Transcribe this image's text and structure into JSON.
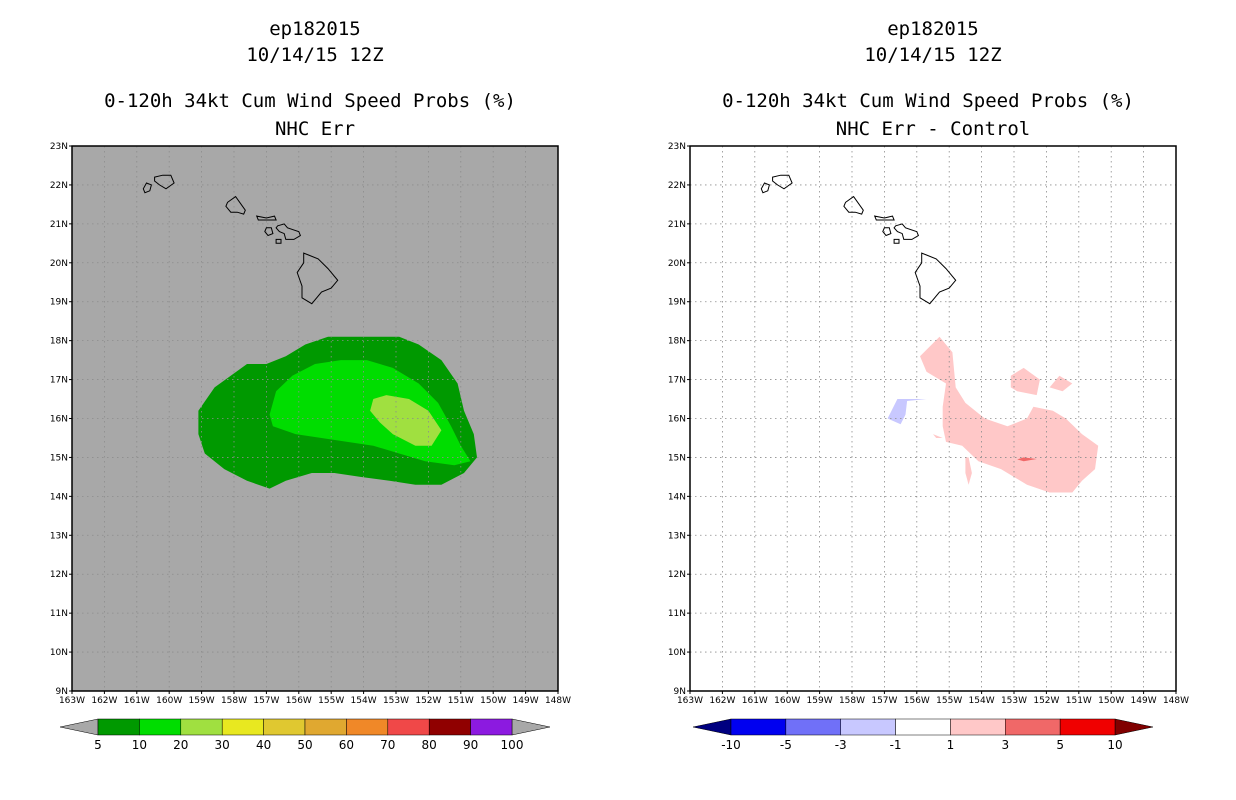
{
  "chart_data": [
    {
      "type": "heatmap",
      "storm_id": "ep182015",
      "date_time": "10/14/15 12Z",
      "title": "0-120h 34kt Cum Wind Speed Probs (%)",
      "subtitle": "NHC Err",
      "x_ticks": [
        "163W",
        "162W",
        "161W",
        "160W",
        "159W",
        "158W",
        "157W",
        "156W",
        "155W",
        "154W",
        "153W",
        "152W",
        "151W",
        "150W",
        "149W",
        "148W"
      ],
      "y_ticks": [
        "9N",
        "10N",
        "11N",
        "12N",
        "13N",
        "14N",
        "15N",
        "16N",
        "17N",
        "18N",
        "19N",
        "20N",
        "21N",
        "22N",
        "23N"
      ],
      "xlim": [
        -163,
        -148
      ],
      "ylim": [
        9,
        23
      ],
      "grid": true,
      "background_color": "#a8a8a8",
      "contours": [
        {
          "level": 5,
          "color": "#009900",
          "points": [
            [
              -159.1,
              16.2
            ],
            [
              -158.6,
              16.8
            ],
            [
              -157.6,
              17.4
            ],
            [
              -157.0,
              17.4
            ],
            [
              -156.4,
              17.6
            ],
            [
              -155.8,
              17.9
            ],
            [
              -155.1,
              18.1
            ],
            [
              -154.0,
              18.1
            ],
            [
              -152.9,
              18.1
            ],
            [
              -152.3,
              17.9
            ],
            [
              -151.6,
              17.5
            ],
            [
              -151.1,
              16.9
            ],
            [
              -150.9,
              16.2
            ],
            [
              -150.6,
              15.6
            ],
            [
              -150.5,
              15.0
            ],
            [
              -150.9,
              14.6
            ],
            [
              -151.6,
              14.3
            ],
            [
              -152.4,
              14.3
            ],
            [
              -153.2,
              14.4
            ],
            [
              -154.1,
              14.5
            ],
            [
              -154.9,
              14.6
            ],
            [
              -155.6,
              14.6
            ],
            [
              -156.4,
              14.4
            ],
            [
              -156.9,
              14.2
            ],
            [
              -157.6,
              14.4
            ],
            [
              -158.3,
              14.7
            ],
            [
              -158.9,
              15.1
            ],
            [
              -159.1,
              15.6
            ]
          ]
        },
        {
          "level": 10,
          "color": "#00dd00",
          "points": [
            [
              -156.9,
              16.1
            ],
            [
              -156.7,
              16.7
            ],
            [
              -156.2,
              17.1
            ],
            [
              -155.5,
              17.4
            ],
            [
              -154.7,
              17.5
            ],
            [
              -153.9,
              17.5
            ],
            [
              -153.1,
              17.3
            ],
            [
              -152.3,
              16.9
            ],
            [
              -151.7,
              16.4
            ],
            [
              -151.3,
              15.8
            ],
            [
              -151.0,
              15.3
            ],
            [
              -150.7,
              14.9
            ],
            [
              -151.2,
              14.8
            ],
            [
              -152.1,
              14.9
            ],
            [
              -152.9,
              15.1
            ],
            [
              -153.7,
              15.3
            ],
            [
              -154.5,
              15.4
            ],
            [
              -155.3,
              15.5
            ],
            [
              -156.1,
              15.6
            ],
            [
              -156.8,
              15.8
            ]
          ]
        },
        {
          "level": 20,
          "color": "#a0e040",
          "points": [
            [
              -153.7,
              16.5
            ],
            [
              -153.3,
              16.6
            ],
            [
              -152.6,
              16.5
            ],
            [
              -152.0,
              16.2
            ],
            [
              -151.6,
              15.7
            ],
            [
              -151.9,
              15.3
            ],
            [
              -152.4,
              15.3
            ],
            [
              -153.1,
              15.6
            ],
            [
              -153.5,
              15.9
            ],
            [
              -153.8,
              16.2
            ]
          ]
        }
      ],
      "colorbar": {
        "labels": [
          "5",
          "10",
          "20",
          "30",
          "40",
          "50",
          "60",
          "70",
          "80",
          "90",
          "100"
        ],
        "colors": [
          "#009900",
          "#00dd00",
          "#a0e040",
          "#e8e820",
          "#e0c830",
          "#e0a830",
          "#f08828",
          "#f04848",
          "#900000",
          "#8c1ae0"
        ],
        "end_colors": [
          "#a8a8a8",
          "#a8a8a8"
        ]
      }
    },
    {
      "type": "heatmap",
      "storm_id": "ep182015",
      "date_time": "10/14/15 12Z",
      "title": "0-120h 34kt Cum Wind Speed Probs (%)",
      "subtitle": "NHC Err - Control",
      "x_ticks": [
        "163W",
        "162W",
        "161W",
        "160W",
        "159W",
        "158W",
        "157W",
        "156W",
        "155W",
        "154W",
        "153W",
        "152W",
        "151W",
        "150W",
        "149W",
        "148W"
      ],
      "y_ticks": [
        "9N",
        "10N",
        "11N",
        "12N",
        "13N",
        "14N",
        "15N",
        "16N",
        "17N",
        "18N",
        "19N",
        "20N",
        "21N",
        "22N",
        "23N"
      ],
      "xlim": [
        -163,
        -148
      ],
      "ylim": [
        9,
        23
      ],
      "grid": true,
      "background_color": "#ffffff",
      "contours": [
        {
          "level": 1,
          "color": "#ffc8c8",
          "points": [
            [
              -155.9,
              17.6
            ],
            [
              -155.3,
              18.1
            ],
            [
              -154.9,
              17.7
            ],
            [
              -154.8,
              16.8
            ],
            [
              -154.5,
              16.4
            ],
            [
              -153.9,
              16.0
            ],
            [
              -153.2,
              15.8
            ],
            [
              -152.6,
              16.0
            ],
            [
              -152.4,
              16.3
            ],
            [
              -151.8,
              16.2
            ],
            [
              -151.4,
              16.0
            ],
            [
              -150.9,
              15.6
            ],
            [
              -150.4,
              15.3
            ],
            [
              -150.5,
              14.7
            ],
            [
              -150.9,
              14.4
            ],
            [
              -151.2,
              14.1
            ],
            [
              -151.9,
              14.1
            ],
            [
              -152.6,
              14.3
            ],
            [
              -153.4,
              14.7
            ],
            [
              -154.1,
              14.9
            ],
            [
              -154.6,
              15.3
            ],
            [
              -155.1,
              15.4
            ],
            [
              -155.2,
              15.8
            ],
            [
              -155.2,
              16.3
            ],
            [
              -155.1,
              16.9
            ],
            [
              -155.7,
              17.2
            ]
          ]
        },
        {
          "level": 1,
          "color": "#ffc8c8",
          "points": [
            [
              -153.1,
              17.1
            ],
            [
              -152.7,
              17.3
            ],
            [
              -152.2,
              17.0
            ],
            [
              -152.3,
              16.6
            ],
            [
              -152.9,
              16.7
            ],
            [
              -153.1,
              16.8
            ]
          ]
        },
        {
          "level": 1,
          "color": "#ffc8c8",
          "points": [
            [
              -151.9,
              16.8
            ],
            [
              -151.6,
              17.1
            ],
            [
              -151.2,
              16.9
            ],
            [
              -151.5,
              16.7
            ]
          ]
        },
        {
          "level": 1,
          "color": "#ffc8c8",
          "points": [
            [
              -154.5,
              15.0
            ],
            [
              -154.4,
              15.0
            ],
            [
              -154.3,
              14.6
            ],
            [
              -154.4,
              14.3
            ],
            [
              -154.5,
              14.6
            ]
          ]
        },
        {
          "level": 1,
          "color": "#ffc8c8",
          "points": [
            [
              -155.5,
              15.6
            ],
            [
              -155.2,
              15.5
            ],
            [
              -155.4,
              15.5
            ]
          ]
        },
        {
          "level": 3,
          "color": "#f06868",
          "points": [
            [
              -152.7,
              15.0
            ],
            [
              -152.3,
              14.96
            ],
            [
              -152.7,
              14.9
            ],
            [
              -152.9,
              14.95
            ]
          ]
        },
        {
          "level": -1,
          "color": "#c8c8ff",
          "points": [
            [
              -156.5,
              15.85
            ],
            [
              -156.9,
              16.0
            ],
            [
              -156.6,
              16.5
            ],
            [
              -156.1,
              16.5
            ],
            [
              -155.7,
              16.5
            ],
            [
              -156.3,
              16.45
            ],
            [
              -156.35,
              16.1
            ]
          ]
        }
      ],
      "colorbar": {
        "labels": [
          "-10",
          "-5",
          "-3",
          "-1",
          "1",
          "3",
          "5",
          "10"
        ],
        "colors": [
          "#0000f0",
          "#7070f8",
          "#c8c8ff",
          "#ffffff",
          "#ffc8c8",
          "#f06868",
          "#f00000"
        ],
        "end_colors": [
          "#000080",
          "#800000"
        ]
      }
    }
  ],
  "islands": {
    "kauai": [
      [
        -160.45,
        22.2
      ],
      [
        -160.2,
        22.25
      ],
      [
        -159.95,
        22.25
      ],
      [
        -159.85,
        22.05
      ],
      [
        -160.1,
        21.9
      ],
      [
        -160.3,
        22.0
      ],
      [
        -160.45,
        22.1
      ]
    ],
    "niihau": [
      [
        -160.7,
        22.05
      ],
      [
        -160.55,
        22.0
      ],
      [
        -160.6,
        21.85
      ],
      [
        -160.75,
        21.8
      ],
      [
        -160.8,
        21.9
      ]
    ],
    "oahu": [
      [
        -158.2,
        21.55
      ],
      [
        -157.95,
        21.7
      ],
      [
        -157.65,
        21.35
      ],
      [
        -157.7,
        21.25
      ],
      [
        -157.9,
        21.3
      ],
      [
        -158.1,
        21.3
      ],
      [
        -158.25,
        21.45
      ]
    ],
    "molokai": [
      [
        -157.3,
        21.2
      ],
      [
        -157.25,
        21.1
      ],
      [
        -157.0,
        21.1
      ],
      [
        -156.7,
        21.1
      ],
      [
        -156.75,
        21.2
      ],
      [
        -157.0,
        21.15
      ]
    ],
    "lanai": [
      [
        -157.0,
        20.9
      ],
      [
        -156.85,
        20.9
      ],
      [
        -156.8,
        20.75
      ],
      [
        -156.95,
        20.7
      ],
      [
        -157.05,
        20.8
      ]
    ],
    "maui": [
      [
        -156.65,
        20.95
      ],
      [
        -156.45,
        21.0
      ],
      [
        -156.35,
        20.9
      ],
      [
        -156.0,
        20.8
      ],
      [
        -155.95,
        20.7
      ],
      [
        -156.15,
        20.6
      ],
      [
        -156.4,
        20.6
      ],
      [
        -156.45,
        20.75
      ],
      [
        -156.6,
        20.8
      ],
      [
        -156.7,
        20.9
      ]
    ],
    "kahoolawe": [
      [
        -156.7,
        20.6
      ],
      [
        -156.55,
        20.6
      ],
      [
        -156.55,
        20.5
      ],
      [
        -156.7,
        20.5
      ]
    ],
    "hawaii": [
      [
        -155.85,
        20.25
      ],
      [
        -155.7,
        20.2
      ],
      [
        -155.4,
        20.1
      ],
      [
        -155.1,
        19.85
      ],
      [
        -154.8,
        19.55
      ],
      [
        -155.0,
        19.35
      ],
      [
        -155.3,
        19.25
      ],
      [
        -155.6,
        18.95
      ],
      [
        -155.9,
        19.1
      ],
      [
        -155.9,
        19.4
      ],
      [
        -156.05,
        19.75
      ],
      [
        -155.85,
        20.0
      ]
    ]
  }
}
